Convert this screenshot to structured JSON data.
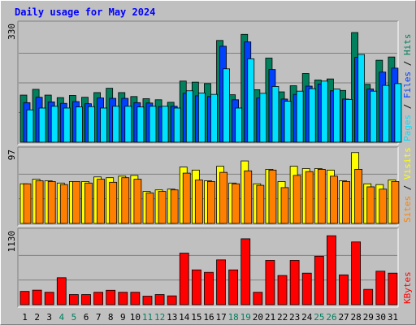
{
  "chart_data": {
    "type": "bar",
    "title": "Daily usage for May 2024",
    "categories": [
      "1",
      "2",
      "3",
      "4",
      "5",
      "6",
      "7",
      "8",
      "9",
      "10",
      "11",
      "12",
      "13",
      "14",
      "15",
      "16",
      "17",
      "18",
      "19",
      "20",
      "21",
      "22",
      "23",
      "24",
      "25",
      "26",
      "27",
      "28",
      "29",
      "30",
      "31"
    ],
    "weekend_days": [
      "4",
      "5",
      "11",
      "12",
      "18",
      "19",
      "25",
      "26"
    ],
    "colors": {
      "hits": "#00805c",
      "files": "#0040ff",
      "pages": "#00e0ff",
      "visits": "#ffff00",
      "sites": "#ff8000",
      "kbytes": "#ff0000",
      "weekday_label": "#000000",
      "weekend_label": "#00805c",
      "title": "#0000ff",
      "background": "#c0c0c0",
      "grid": "#808080"
    },
    "panels": [
      {
        "id": "hits-files-pages",
        "ymax": 330,
        "ymax_label": "330",
        "legend": [
          "Pages",
          "Files",
          "Hits"
        ],
        "series": [
          {
            "name": "Hits",
            "values": [
              131,
              147,
              131,
              124,
              130,
              125,
              138,
              150,
              138,
              127,
              121,
              118,
              111,
              170,
              167,
              163,
              283,
              132,
              300,
              146,
              234,
              140,
              157,
              191,
              173,
              176,
              144,
              305,
              161,
              228,
              237
            ]
          },
          {
            "name": "Files",
            "values": [
              110,
              125,
              112,
              108,
              113,
              107,
              123,
              122,
              122,
              110,
              109,
              99,
              100,
              136,
              129,
              127,
              267,
              118,
              279,
              123,
              202,
              120,
              133,
              156,
              162,
              143,
              120,
              236,
              148,
              195,
              206
            ]
          },
          {
            "name": "Pages",
            "values": [
              90,
              95,
              100,
              95,
              98,
              99,
              95,
              100,
              100,
              98,
              100,
              100,
              95,
              143,
              137,
              133,
              204,
              95,
              232,
              136,
              155,
              114,
              142,
              149,
              170,
              148,
              119,
              244,
              142,
              158,
              163
            ]
          }
        ]
      },
      {
        "id": "visits-sites",
        "ymax": 97,
        "ymax_label": "97",
        "legend": [
          "Sites",
          "Visits"
        ],
        "series": [
          {
            "name": "Visits",
            "values": [
              52,
              58,
              56,
              53,
              55,
              55,
              61,
              60,
              62,
              63,
              42,
              44,
              45,
              74,
              70,
              56,
              75,
              53,
              82,
              52,
              71,
              55,
              75,
              72,
              72,
              70,
              56,
              93,
              52,
              51,
              57
            ]
          },
          {
            "name": "Sites",
            "values": [
              52,
              56,
              55,
              51,
              55,
              53,
              58,
              54,
              60,
              58,
              40,
              42,
              44,
              66,
              57,
              55,
              67,
              52,
              69,
              50,
              70,
              47,
              63,
              68,
              71,
              62,
              55,
              71,
              48,
              45,
              55
            ]
          }
        ]
      },
      {
        "id": "kbytes",
        "ymax": 1130,
        "ymax_label": "1130",
        "legend": [
          "KBytes"
        ],
        "series": [
          {
            "name": "KBytes",
            "values": [
              203,
              222,
              190,
              412,
              155,
              155,
              190,
              220,
              190,
              190,
              130,
              155,
              135,
              788,
              532,
              494,
              685,
              532,
              1007,
              190,
              677,
              446,
              677,
              482,
              741,
              1054,
              456,
              959,
              234,
              512,
              482
            ]
          }
        ]
      }
    ]
  }
}
